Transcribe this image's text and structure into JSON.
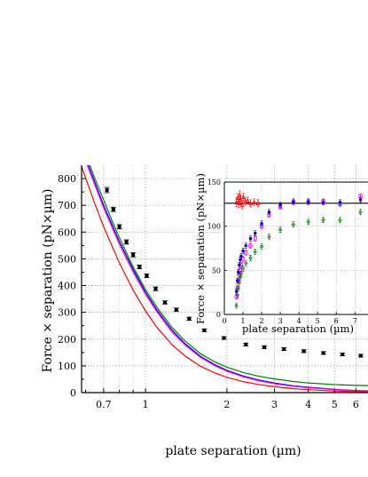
{
  "chart_data": [
    {
      "type": "scatter",
      "panel": "main",
      "xscale": "log",
      "xlabel": "plate separation (µm)",
      "ylabel": "Force × separation (pN×µm)",
      "xlim": [
        0.58,
        6.7
      ],
      "ylim": [
        0,
        850
      ],
      "xticks": [
        0.7,
        1,
        2,
        3,
        4,
        5,
        6
      ],
      "xtick_labels": [
        "0.7",
        "1",
        "2",
        "3",
        "4",
        "5",
        "6"
      ],
      "yticks": [
        0,
        100,
        200,
        300,
        400,
        500,
        600,
        700,
        800
      ],
      "ytick_labels": [
        "0",
        "100",
        "200",
        "300",
        "400",
        "500",
        "600",
        "700",
        "800"
      ],
      "grid": true,
      "grid_style": "dotted",
      "series": [
        {
          "kind": "points",
          "color": "#000000",
          "x": [
            0.72,
            0.76,
            0.8,
            0.85,
            0.9,
            0.95,
            1.01,
            1.09,
            1.18,
            1.3,
            1.45,
            1.65,
            1.95,
            2.35,
            2.75,
            3.25,
            3.85,
            4.55,
            5.35,
            6.25
          ],
          "y": [
            757,
            685,
            620,
            563,
            515,
            470,
            437,
            388,
            337,
            310,
            276,
            233,
            204,
            180,
            170,
            163,
            155,
            148,
            143,
            138
          ],
          "yerr": [
            10,
            8,
            8,
            8,
            8,
            7,
            7,
            7,
            6,
            6,
            6,
            5,
            5,
            5,
            5,
            5,
            5,
            5,
            5,
            5
          ]
        },
        {
          "kind": "curve",
          "color": "#008000",
          "x": [
            0.58,
            0.65,
            0.7,
            0.75,
            0.8,
            0.9,
            1.0,
            1.1,
            1.25,
            1.4,
            1.6,
            1.8,
            2.0,
            2.3,
            2.6,
            3.0,
            3.5,
            4.0,
            5.0,
            6.0,
            6.7
          ],
          "y": [
            930,
            800,
            720,
            645,
            580,
            470,
            385,
            320,
            245,
            193,
            145,
            115,
            95,
            75,
            62,
            51,
            42,
            36,
            30,
            27,
            26
          ]
        },
        {
          "kind": "curve",
          "color": "#0000cc",
          "x": [
            0.58,
            0.65,
            0.7,
            0.75,
            0.8,
            0.9,
            1.0,
            1.1,
            1.25,
            1.4,
            1.6,
            1.8,
            2.0,
            2.3,
            2.6,
            3.0,
            3.5,
            4.0,
            5.0,
            6.0,
            6.7
          ],
          "y": [
            915,
            785,
            700,
            630,
            565,
            460,
            375,
            310,
            235,
            183,
            135,
            105,
            83,
            62,
            48,
            36,
            26,
            20,
            12,
            8,
            6
          ]
        },
        {
          "kind": "curve",
          "color": "#ff00ff",
          "x": [
            0.58,
            0.65,
            0.7,
            0.75,
            0.8,
            0.9,
            1.0,
            1.1,
            1.25,
            1.4,
            1.6,
            1.8,
            2.0,
            2.3,
            2.6,
            3.0,
            3.5,
            4.0,
            5.0,
            6.0,
            6.7
          ],
          "y": [
            905,
            775,
            690,
            620,
            555,
            450,
            368,
            303,
            228,
            178,
            131,
            101,
            80,
            59,
            45,
            33,
            24,
            18,
            11,
            7,
            5
          ]
        },
        {
          "kind": "curve",
          "color": "#ff0000",
          "x": [
            0.58,
            0.65,
            0.7,
            0.75,
            0.8,
            0.9,
            1.0,
            1.1,
            1.25,
            1.4,
            1.6,
            1.8,
            2.0,
            2.3,
            2.6,
            3.0,
            3.5,
            4.0,
            5.0,
            6.0,
            6.7
          ],
          "y": [
            845,
            705,
            620,
            550,
            485,
            383,
            305,
            245,
            180,
            137,
            98,
            74,
            57,
            41,
            31,
            22,
            15,
            11,
            6,
            4,
            3
          ]
        }
      ]
    },
    {
      "type": "scatter",
      "panel": "inset",
      "xlabel": "plate separation (µm)",
      "ylabel": "Force × separation (pN×µm)",
      "xlim": [
        0,
        7.7
      ],
      "ylim": [
        0,
        150
      ],
      "xticks": [
        0,
        1,
        2,
        3,
        4,
        5,
        6,
        7
      ],
      "xtick_labels": [
        "0",
        "1",
        "2",
        "3",
        "4",
        "5",
        "6",
        "7"
      ],
      "yticks": [
        0,
        50,
        100,
        150
      ],
      "ytick_labels": [
        "0",
        "50",
        "100",
        "150"
      ],
      "grid": true,
      "grid_style": "dotted",
      "reference_line": {
        "y": 126,
        "color": "#000000"
      },
      "series": [
        {
          "color": "#ff0000",
          "marker": "triangle",
          "x": [
            0.65,
            0.72,
            0.78,
            0.82,
            0.88,
            0.95,
            1.02,
            1.12,
            1.25,
            1.4,
            1.6,
            1.8
          ],
          "y": [
            127,
            132,
            126,
            135,
            130,
            124,
            133,
            128,
            129,
            126,
            127,
            126
          ],
          "yerr": [
            5,
            5,
            5,
            5,
            5,
            4,
            4,
            4,
            4,
            4,
            4,
            4
          ]
        },
        {
          "color": "#ff00ff",
          "marker": "square",
          "x": [
            0.65,
            0.7,
            0.75,
            0.8,
            0.85,
            0.9,
            1.0,
            1.15,
            1.4,
            1.65,
            2.0,
            2.4,
            3.0,
            3.7,
            4.5,
            5.3,
            6.2,
            7.3
          ],
          "y": [
            20,
            30,
            38,
            44,
            50,
            56,
            63,
            70,
            78,
            86,
            100,
            113,
            122,
            127,
            127,
            128,
            125,
            134
          ],
          "yerr": [
            3,
            3,
            3,
            3,
            3,
            3,
            3,
            3,
            3,
            3,
            3,
            3,
            3,
            3,
            3,
            3,
            3,
            3
          ]
        },
        {
          "color": "#0000cc",
          "marker": "circle",
          "x": [
            0.65,
            0.7,
            0.75,
            0.8,
            0.85,
            0.9,
            1.0,
            1.15,
            1.4,
            1.65,
            2.0,
            2.4,
            3.0,
            3.7,
            4.5,
            5.3,
            6.2,
            7.3
          ],
          "y": [
            26,
            38,
            48,
            56,
            62,
            66,
            72,
            78,
            86,
            92,
            103,
            116,
            124,
            128,
            128,
            127,
            127,
            130
          ],
          "yerr": [
            3,
            3,
            3,
            3,
            3,
            3,
            3,
            3,
            3,
            3,
            3,
            3,
            3,
            3,
            3,
            3,
            3,
            3
          ]
        },
        {
          "color": "#008000",
          "marker": "diamond",
          "x": [
            0.65,
            0.7,
            0.75,
            0.8,
            0.85,
            0.9,
            1.0,
            1.15,
            1.4,
            1.65,
            2.0,
            2.4,
            3.0,
            3.7,
            4.5,
            5.3,
            6.2,
            7.3
          ],
          "y": [
            10,
            22,
            30,
            36,
            42,
            46,
            52,
            58,
            64,
            71,
            77,
            88,
            96,
            102,
            105,
            107,
            107,
            116
          ],
          "yerr": [
            3,
            3,
            3,
            3,
            3,
            3,
            3,
            3,
            3,
            3,
            3,
            3,
            3,
            3,
            3,
            3,
            3,
            3
          ]
        }
      ]
    }
  ]
}
